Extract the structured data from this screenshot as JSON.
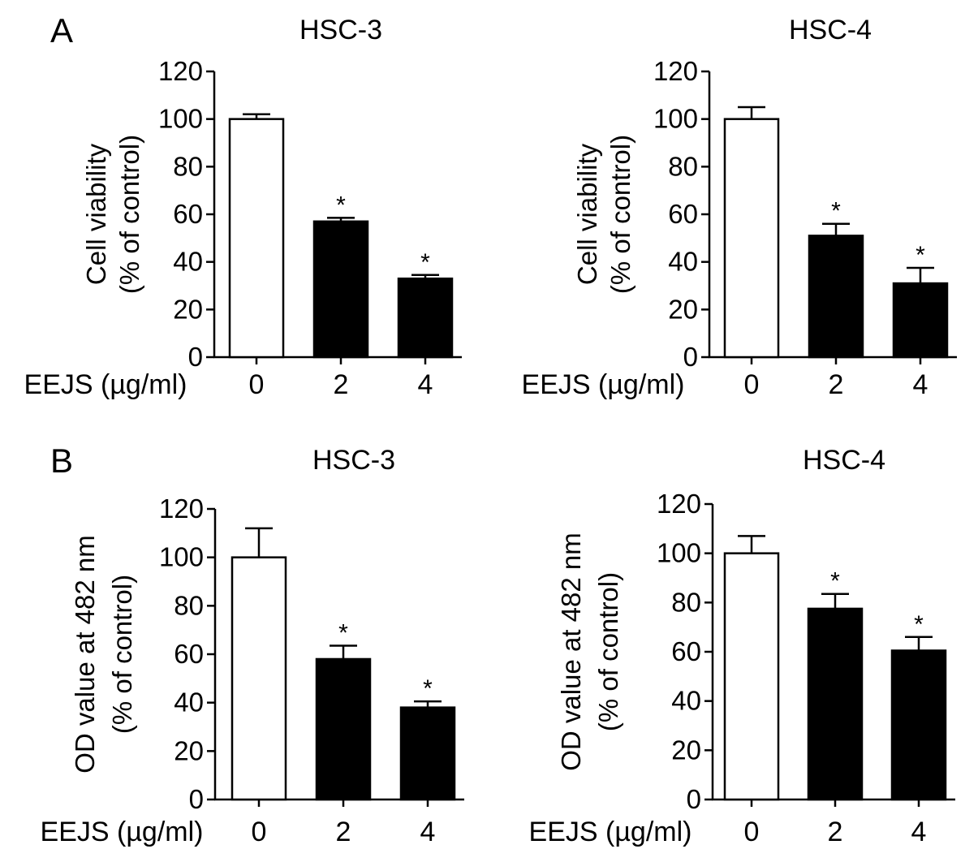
{
  "chart_data": [
    {
      "panel": "A",
      "type": "bar",
      "title": "HSC-3",
      "ylabel_lines": [
        "Cell viability",
        "(% of control)"
      ],
      "xlabel": "EEJS (µg/ml)",
      "categories": [
        "0",
        "2",
        "4"
      ],
      "values": [
        100,
        57,
        33
      ],
      "errors": [
        2,
        1.5,
        1.5
      ],
      "significance": [
        "",
        "*",
        "*"
      ],
      "bar_fill": [
        "#ffffff",
        "#000000",
        "#000000"
      ],
      "ylim": [
        0,
        120
      ],
      "yticks": [
        0,
        20,
        40,
        60,
        80,
        100,
        120
      ]
    },
    {
      "panel": "",
      "type": "bar",
      "title": "HSC-4",
      "ylabel_lines": [
        "Cell viability",
        "(% of control)"
      ],
      "xlabel": "EEJS (µg/ml)",
      "categories": [
        "0",
        "2",
        "4"
      ],
      "values": [
        100,
        51,
        31
      ],
      "errors": [
        5,
        5,
        6.5
      ],
      "significance": [
        "",
        "*",
        "*"
      ],
      "bar_fill": [
        "#ffffff",
        "#000000",
        "#000000"
      ],
      "ylim": [
        0,
        120
      ],
      "yticks": [
        0,
        20,
        40,
        60,
        80,
        100,
        120
      ]
    },
    {
      "panel": "B",
      "type": "bar",
      "title": "HSC-3",
      "ylabel_lines": [
        "OD value at 482 nm",
        "(% of control)"
      ],
      "xlabel": "EEJS (µg/ml)",
      "categories": [
        "0",
        "2",
        "4"
      ],
      "values": [
        100,
        58,
        38
      ],
      "errors": [
        12,
        5.5,
        2.5
      ],
      "significance": [
        "",
        "*",
        "*"
      ],
      "bar_fill": [
        "#ffffff",
        "#000000",
        "#000000"
      ],
      "ylim": [
        0,
        120
      ],
      "yticks": [
        0,
        20,
        40,
        60,
        80,
        100,
        120
      ]
    },
    {
      "panel": "",
      "type": "bar",
      "title": "HSC-4",
      "ylabel_lines": [
        "OD value at 482 nm",
        "(% of control)"
      ],
      "xlabel": "EEJS (µg/ml)",
      "categories": [
        "0",
        "2",
        "4"
      ],
      "values": [
        100,
        77.5,
        60.5
      ],
      "errors": [
        7,
        6,
        5.5
      ],
      "significance": [
        "",
        "*",
        "*"
      ],
      "bar_fill": [
        "#ffffff",
        "#000000",
        "#000000"
      ],
      "ylim": [
        0,
        120
      ],
      "yticks": [
        0,
        20,
        40,
        60,
        80,
        100,
        120
      ]
    }
  ]
}
